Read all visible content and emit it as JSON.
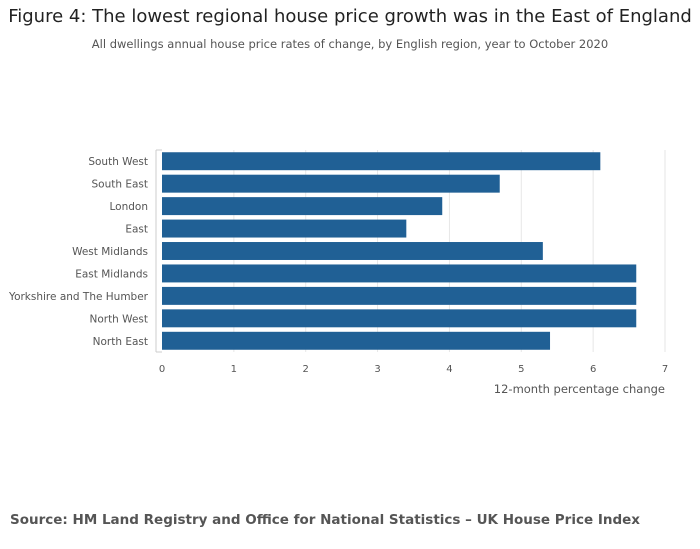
{
  "header": {
    "title": "Figure 4: The lowest regional house price growth was in the East of England",
    "subtitle": "All dwellings annual house price rates of change, by English region, year to October 2020"
  },
  "footer": {
    "source": "Source: HM Land Registry and Office for National Statistics – UK House Price Index"
  },
  "chart_data": {
    "type": "bar",
    "orientation": "horizontal",
    "title": "Figure 4: The lowest regional house price growth was in the East of England",
    "subtitle": "All dwellings annual house price rates of change, by English region, year to October 2020",
    "categories": [
      "South West",
      "South East",
      "London",
      "East",
      "West Midlands",
      "East Midlands",
      "Yorkshire and The Humber",
      "North West",
      "North East"
    ],
    "values": [
      6.1,
      4.7,
      3.9,
      3.4,
      5.3,
      6.6,
      6.6,
      6.6,
      5.4
    ],
    "xlabel": "12-month percentage change",
    "ylabel": "",
    "xlim": [
      0,
      7
    ],
    "xticks": [
      "0",
      "1",
      "2",
      "3",
      "4",
      "5",
      "6",
      "7"
    ],
    "grid": true,
    "bar_color": "#206095",
    "grid_color": "#e6e6e6",
    "axis_color": "#cccccc"
  }
}
